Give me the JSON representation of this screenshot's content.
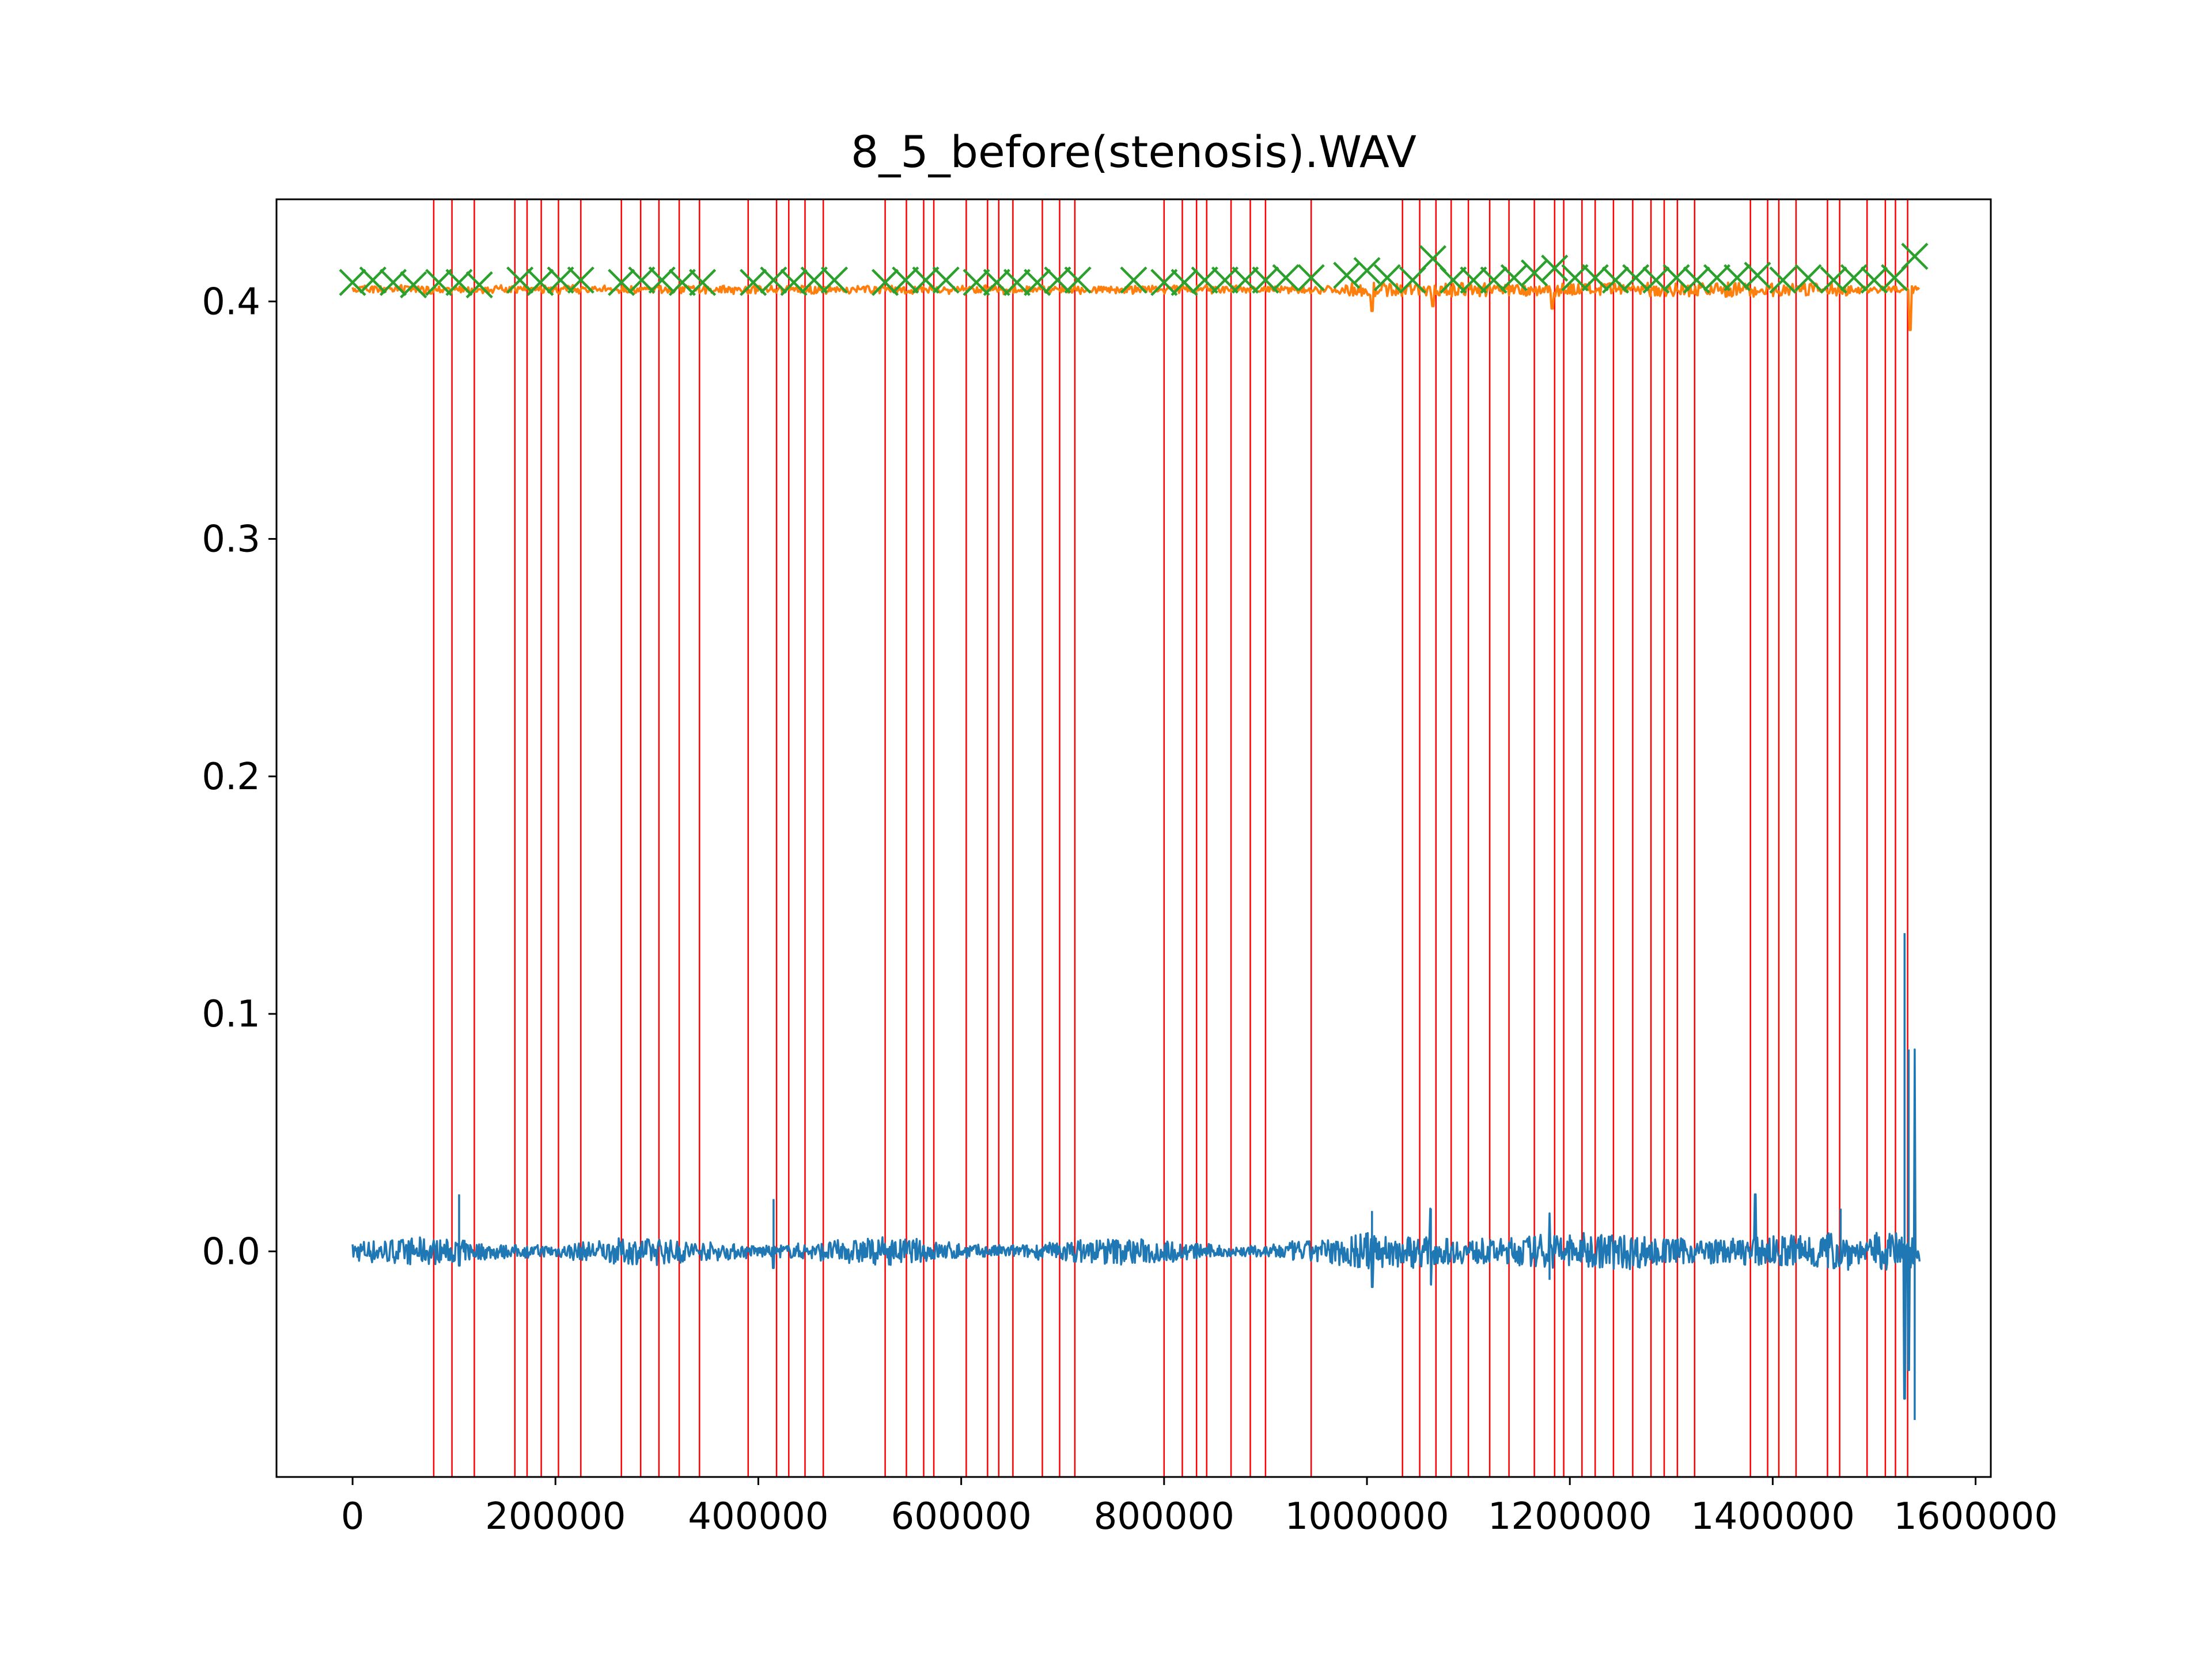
{
  "chart_data": {
    "type": "line",
    "title": "8_5_before(stenosis).WAV",
    "xlabel": "",
    "ylabel": "",
    "xlim": [
      -75000,
      1615000
    ],
    "ylim": [
      -0.095,
      0.443
    ],
    "grid": false,
    "x_ticks": [
      0,
      200000,
      400000,
      600000,
      800000,
      1000000,
      1200000,
      1400000,
      1600000
    ],
    "x_tick_labels": [
      "0",
      "200000",
      "400000",
      "600000",
      "800000",
      "1000000",
      "1200000",
      "1400000",
      "1600000"
    ],
    "y_ticks": [
      0.0,
      0.1,
      0.2,
      0.3,
      0.4
    ],
    "y_tick_labels": [
      "0.0",
      "0.1",
      "0.2",
      "0.3",
      "0.4"
    ],
    "colors": {
      "signal": "#1f77b4",
      "envelope": "#ff7f0e",
      "peaks": "#2ca02c",
      "boundaries": "#ff0000"
    },
    "series": [
      {
        "color": "#1f77b4",
        "kind": "line",
        "baseline": 0.0,
        "x_range": [
          0,
          1545000
        ],
        "spikes": [
          {
            "x": 105000,
            "max": 0.024,
            "min": -0.006
          },
          {
            "x": 415000,
            "max": 0.022,
            "min": -0.007
          },
          {
            "x": 1005000,
            "max": 0.017,
            "min": -0.015
          },
          {
            "x": 1063000,
            "max": 0.018,
            "min": -0.014
          },
          {
            "x": 1180000,
            "max": 0.016,
            "min": -0.012
          },
          {
            "x": 1383000,
            "max": 0.024,
            "min": -0.005
          },
          {
            "x": 1467000,
            "max": 0.018,
            "min": -0.005
          },
          {
            "x": 1530000,
            "max": 0.134,
            "min": -0.062
          },
          {
            "x": 1534000,
            "max": 0.085,
            "min": -0.05
          },
          {
            "x": 1540000,
            "max": 0.085,
            "min": -0.071
          }
        ]
      },
      {
        "color": "#ff7f0e",
        "kind": "line",
        "baseline": 0.405,
        "x_range": [
          0,
          1545000
        ],
        "dips": [
          {
            "x": 1005000,
            "min": 0.396
          },
          {
            "x": 1065000,
            "min": 0.398
          },
          {
            "x": 1183000,
            "min": 0.397
          },
          {
            "x": 1535000,
            "min": 0.388
          }
        ]
      },
      {
        "color": "#2ca02c",
        "kind": "scatter",
        "marker": "x",
        "points": [
          [
            0,
            0.408
          ],
          [
            20000,
            0.409
          ],
          [
            40000,
            0.408
          ],
          [
            60000,
            0.407
          ],
          [
            85000,
            0.408
          ],
          [
            105000,
            0.408
          ],
          [
            125000,
            0.407
          ],
          [
            165000,
            0.409
          ],
          [
            185000,
            0.408
          ],
          [
            205000,
            0.409
          ],
          [
            225000,
            0.409
          ],
          [
            265000,
            0.408
          ],
          [
            285000,
            0.409
          ],
          [
            305000,
            0.409
          ],
          [
            325000,
            0.408
          ],
          [
            345000,
            0.408
          ],
          [
            395000,
            0.408
          ],
          [
            415000,
            0.409
          ],
          [
            435000,
            0.408
          ],
          [
            455000,
            0.409
          ],
          [
            475000,
            0.409
          ],
          [
            525000,
            0.408
          ],
          [
            545000,
            0.409
          ],
          [
            565000,
            0.409
          ],
          [
            585000,
            0.409
          ],
          [
            615000,
            0.408
          ],
          [
            635000,
            0.408
          ],
          [
            655000,
            0.408
          ],
          [
            675000,
            0.408
          ],
          [
            695000,
            0.409
          ],
          [
            715000,
            0.409
          ],
          [
            770000,
            0.409
          ],
          [
            800000,
            0.408
          ],
          [
            820000,
            0.408
          ],
          [
            840000,
            0.409
          ],
          [
            860000,
            0.409
          ],
          [
            880000,
            0.409
          ],
          [
            900000,
            0.409
          ],
          [
            920000,
            0.41
          ],
          [
            945000,
            0.41
          ],
          [
            980000,
            0.411
          ],
          [
            1000000,
            0.413
          ],
          [
            1020000,
            0.41
          ],
          [
            1045000,
            0.409
          ],
          [
            1065000,
            0.418
          ],
          [
            1085000,
            0.409
          ],
          [
            1105000,
            0.409
          ],
          [
            1125000,
            0.409
          ],
          [
            1145000,
            0.41
          ],
          [
            1165000,
            0.412
          ],
          [
            1185000,
            0.414
          ],
          [
            1205000,
            0.41
          ],
          [
            1225000,
            0.41
          ],
          [
            1245000,
            0.409
          ],
          [
            1265000,
            0.41
          ],
          [
            1285000,
            0.409
          ],
          [
            1305000,
            0.41
          ],
          [
            1325000,
            0.409
          ],
          [
            1345000,
            0.41
          ],
          [
            1365000,
            0.41
          ],
          [
            1385000,
            0.411
          ],
          [
            1410000,
            0.409
          ],
          [
            1435000,
            0.41
          ],
          [
            1460000,
            0.409
          ],
          [
            1480000,
            0.41
          ],
          [
            1500000,
            0.409
          ],
          [
            1520000,
            0.41
          ],
          [
            1540000,
            0.419
          ]
        ]
      },
      {
        "color": "#ff0000",
        "kind": "vlines",
        "x": [
          80000,
          98000,
          120000,
          160000,
          172000,
          186000,
          203000,
          225000,
          265000,
          284000,
          302000,
          322000,
          342000,
          390000,
          418000,
          430000,
          446000,
          464000,
          525000,
          546000,
          563000,
          573000,
          605000,
          626000,
          637000,
          651000,
          680000,
          697000,
          712000,
          800000,
          818000,
          832000,
          842000,
          866000,
          885000,
          900000,
          945000,
          1035000,
          1052000,
          1068000,
          1083000,
          1100000,
          1121000,
          1140000,
          1165000,
          1185000,
          1194000,
          1212000,
          1225000,
          1243000,
          1262000,
          1280000,
          1293000,
          1306000,
          1323000,
          1378000,
          1395000,
          1406000,
          1423000,
          1454000,
          1466000,
          1493000,
          1511000,
          1521000,
          1533000
        ]
      }
    ]
  }
}
